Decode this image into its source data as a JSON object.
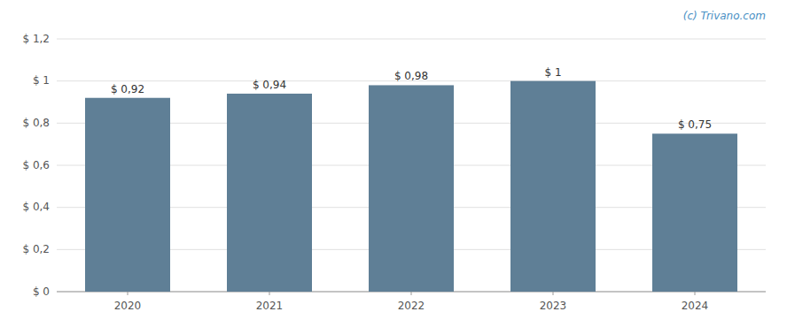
{
  "chart_data": {
    "type": "bar",
    "categories": [
      "2020",
      "2021",
      "2022",
      "2023",
      "2024"
    ],
    "values": [
      0.92,
      0.94,
      0.98,
      1.0,
      0.75
    ],
    "value_labels": [
      "$ 0,92",
      "$ 0,94",
      "$ 0,98",
      "$ 1",
      "$ 0,75"
    ],
    "data_labels": true,
    "color": "#5f7f96",
    "ylim": [
      0,
      1.2
    ],
    "yticks": [
      {
        "value": 0,
        "label": "$ 0"
      },
      {
        "value": 0.2,
        "label": "$ 0,2"
      },
      {
        "value": 0.4,
        "label": "$ 0,4"
      },
      {
        "value": 0.6,
        "label": "$ 0,6"
      },
      {
        "value": 0.8,
        "label": "$ 0,8"
      },
      {
        "value": 1.0,
        "label": "$ 1"
      },
      {
        "value": 1.2,
        "label": "$ 1,2"
      }
    ],
    "grid": true,
    "annotations": [
      "(c) Trivano.com"
    ]
  }
}
